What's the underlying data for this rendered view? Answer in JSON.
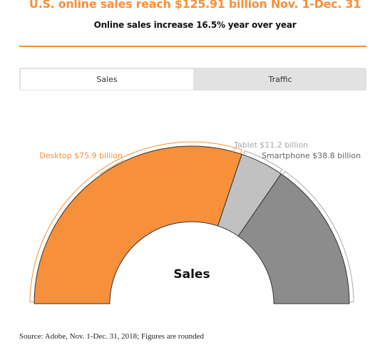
{
  "header": {
    "title": "U.S. online sales reach $125.91 billion Nov. 1-Dec. 31",
    "subtitle": "Online sales increase 16.5% year over year"
  },
  "tabs": [
    {
      "label": "Sales",
      "active": true
    },
    {
      "label": "Traffic",
      "active": false
    }
  ],
  "chart_data": {
    "type": "pie",
    "variant": "semicircle-donut",
    "center_label": "Sales",
    "slices": [
      {
        "label": "Desktop $75.9 billion",
        "category": "Desktop",
        "value": 75.9,
        "color": "#f7903a"
      },
      {
        "label": "Tablet $11.2 billion",
        "category": "Tablet",
        "value": 11.2,
        "color": "#c1c1c1"
      },
      {
        "label": "Smartphone $38.8 billion",
        "category": "Smartphone",
        "value": 38.8,
        "color": "#8c8c8c"
      }
    ],
    "units": "billion USD"
  },
  "footer": {
    "source": "Source: Adobe, Nov. 1-Dec. 31, 2018; Figures are rounded"
  }
}
